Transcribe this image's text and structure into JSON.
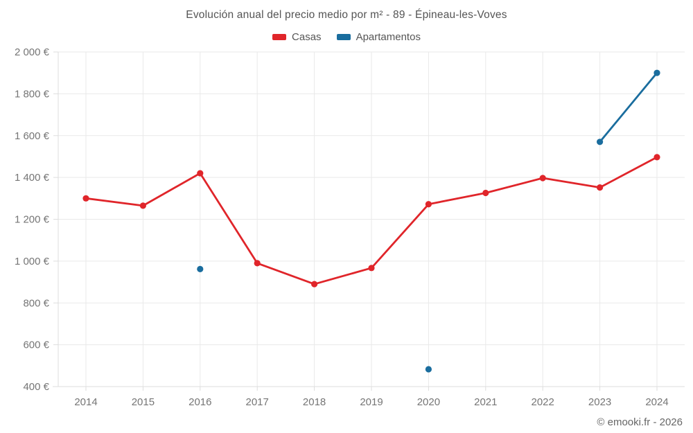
{
  "title": "Evolución anual del precio medio por m² - 89 - Épineau-les-Voves",
  "legend": [
    {
      "label": "Casas",
      "color": "#e0252a"
    },
    {
      "label": "Apartamentos",
      "color": "#1a6d9e"
    }
  ],
  "attribution": "© emooki.fr - 2026",
  "colors": {
    "casas": "#e0252a",
    "apartamentos": "#1a6d9e",
    "gridline": "#e9e9e9",
    "axis": "#dddddd",
    "tick_text": "#757575",
    "title_text": "#545454"
  },
  "chart_data": {
    "type": "line",
    "title": "Evolución anual del precio medio por m² - 89 - Épineau-les-Voves",
    "categories": [
      "2014",
      "2015",
      "2016",
      "2017",
      "2018",
      "2019",
      "2020",
      "2021",
      "2022",
      "2023",
      "2024"
    ],
    "series": [
      {
        "name": "Casas",
        "color": "#e0252a",
        "values": [
          1300,
          1265,
          1420,
          990,
          890,
          967,
          1272,
          1326,
          1397,
          1352,
          1497
        ]
      },
      {
        "name": "Apartamentos",
        "color": "#1a6d9e",
        "values": [
          null,
          null,
          962,
          null,
          null,
          null,
          483,
          null,
          null,
          1570,
          1900
        ]
      }
    ],
    "xlabel": "",
    "ylabel": "",
    "ylim": [
      400,
      2000
    ],
    "y_tick_step": 200,
    "y_ticks": [
      "400 €",
      "600 €",
      "800 €",
      "1 000 €",
      "1 200 €",
      "1 400 €",
      "1 600 €",
      "1 800 €",
      "2 000 €"
    ],
    "grid": true,
    "legend_position": "top",
    "currency": "€"
  }
}
